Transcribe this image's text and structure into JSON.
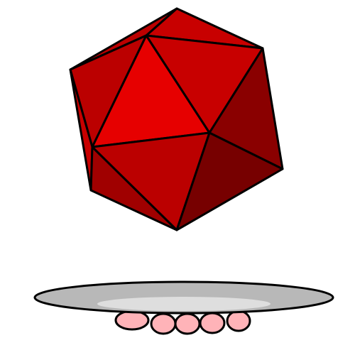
{
  "scene": {
    "subject": "icosahedron-on-tray",
    "colors": {
      "background": "#ffffff",
      "outline": "#000000",
      "face_bright": "#e60000",
      "face_mid": "#c80000",
      "face_base": "#bb0000",
      "face_shadow": "#a00000",
      "face_dark": "#8a0000",
      "face_darkest": "#770000",
      "tray_rim": "#b8b8b8",
      "tray_highlight": "#dedede",
      "fingers": "#ffb3b8"
    },
    "finger_count": 5
  }
}
